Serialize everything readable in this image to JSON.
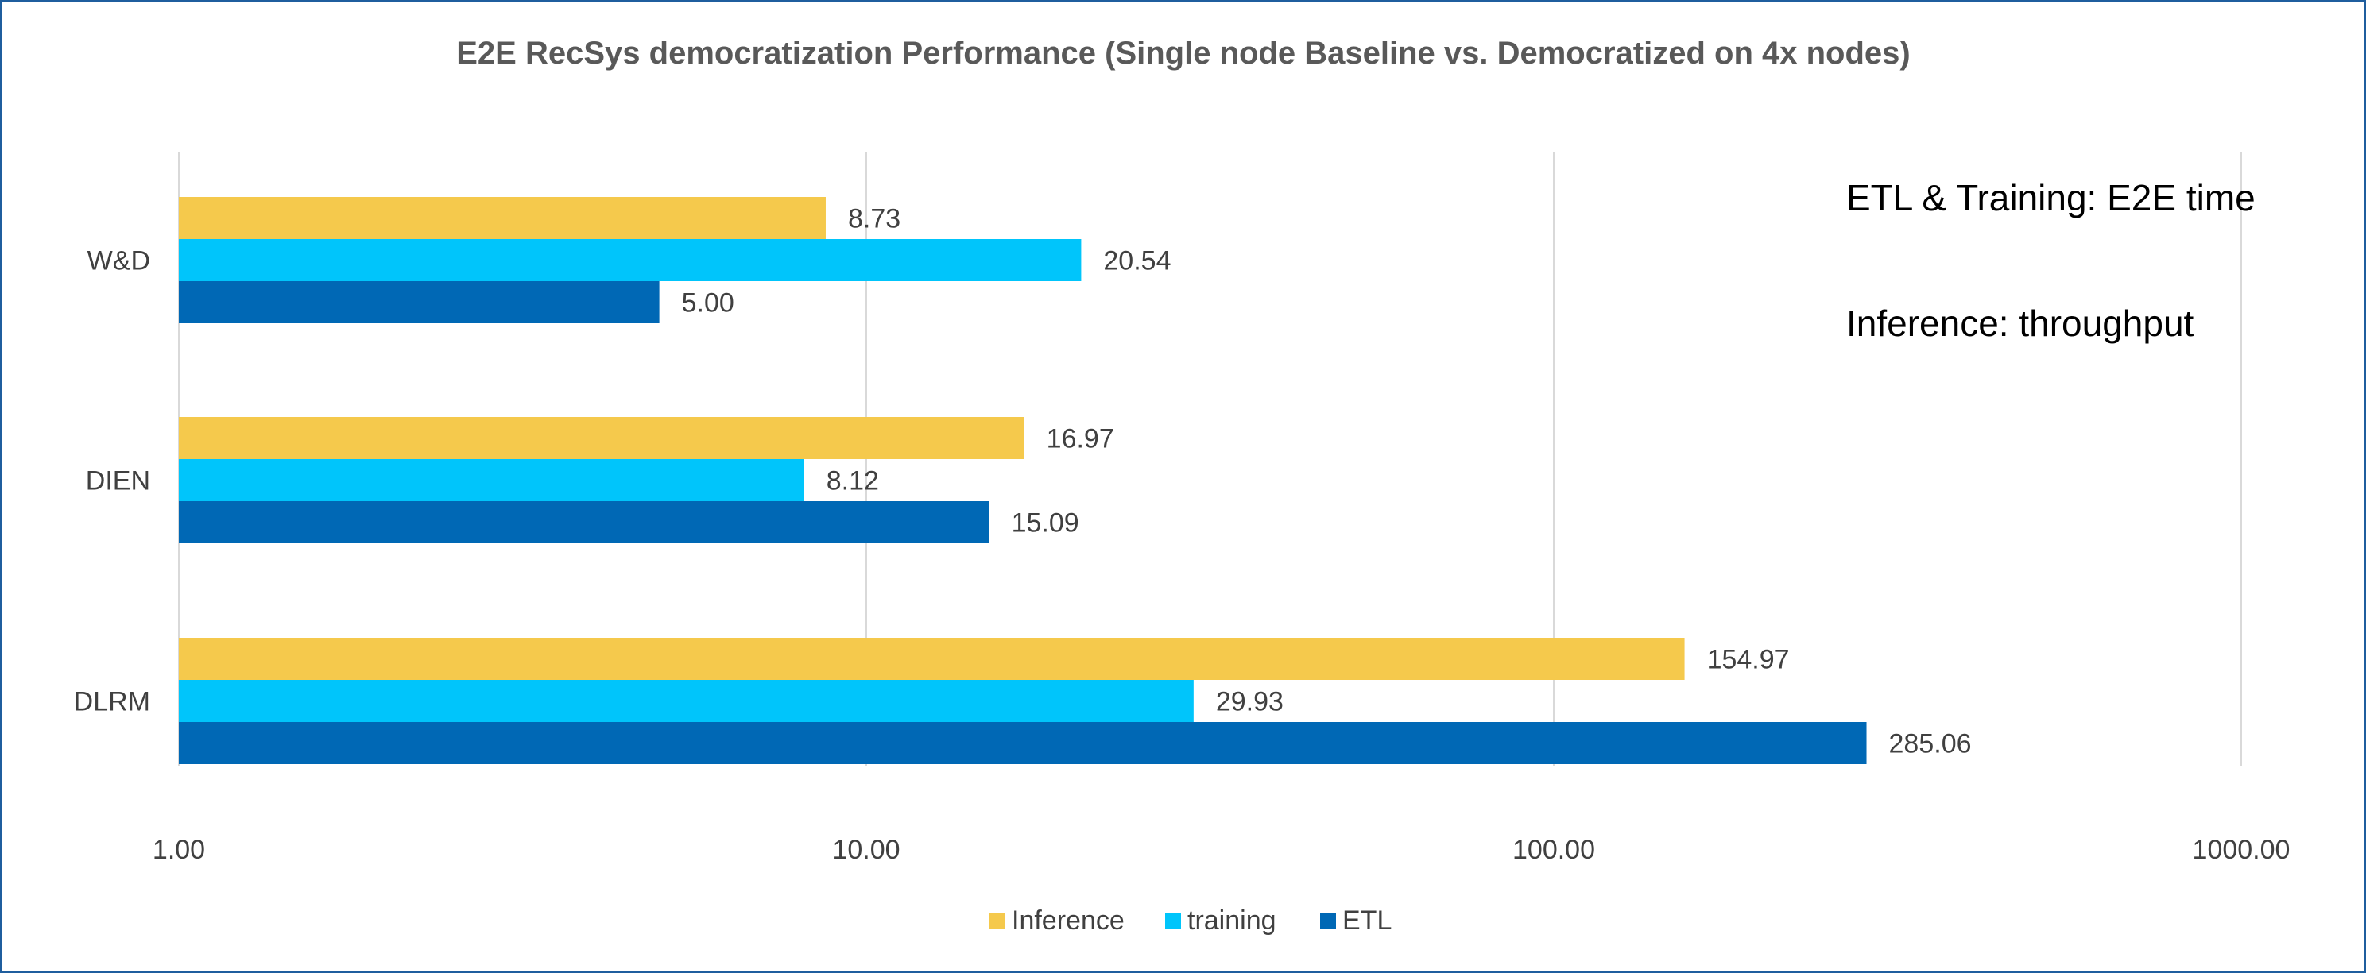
{
  "chart_data": {
    "type": "bar",
    "orientation": "horizontal",
    "title": "E2E RecSys democratization Performance (Single node Baseline  vs. Democratized on 4x nodes)",
    "xscale": "log",
    "xlim": [
      1,
      1000
    ],
    "x_ticks": [
      "1.00",
      "10.00",
      "100.00",
      "1000.00"
    ],
    "grid": true,
    "legend_position": "bottom",
    "categories": [
      "W&D",
      "DIEN",
      "DLRM"
    ],
    "series": [
      {
        "name": "Inference",
        "color": "#f5c94c",
        "values": [
          8.73,
          16.97,
          154.97
        ],
        "labels": [
          "8.73",
          "16.97",
          "154.97"
        ]
      },
      {
        "name": "training",
        "color": "#00c5fb",
        "values": [
          20.54,
          8.12,
          29.93
        ],
        "labels": [
          "20.54",
          "8.12",
          "29.93"
        ]
      },
      {
        "name": "ETL",
        "color": "#0068b5",
        "values": [
          5.0,
          15.09,
          285.06
        ],
        "labels": [
          "5.00",
          "15.09",
          "285.06"
        ]
      }
    ],
    "annotations": [
      "ETL & Training: E2E time",
      "Inference: throughput"
    ]
  }
}
